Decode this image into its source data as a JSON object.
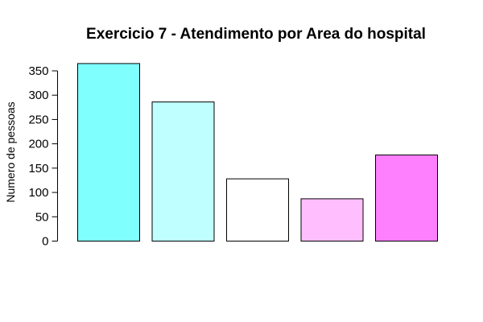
{
  "chart_data": {
    "type": "bar",
    "title": "Exercicio 7 - Atendimento por Area do hospital",
    "xlabel": "",
    "ylabel": "Numero de pessoas",
    "categories": [
      "",
      "",
      "",
      "",
      ""
    ],
    "values": [
      365,
      286,
      128,
      87,
      177
    ],
    "colors": [
      "#80ffff",
      "#bfffff",
      "#ffffff",
      "#ffbfff",
      "#ff80ff"
    ],
    "ylim": [
      0,
      350
    ],
    "yticks": [
      0,
      50,
      100,
      150,
      200,
      250,
      300,
      350
    ],
    "grid": false,
    "legend": "none"
  }
}
